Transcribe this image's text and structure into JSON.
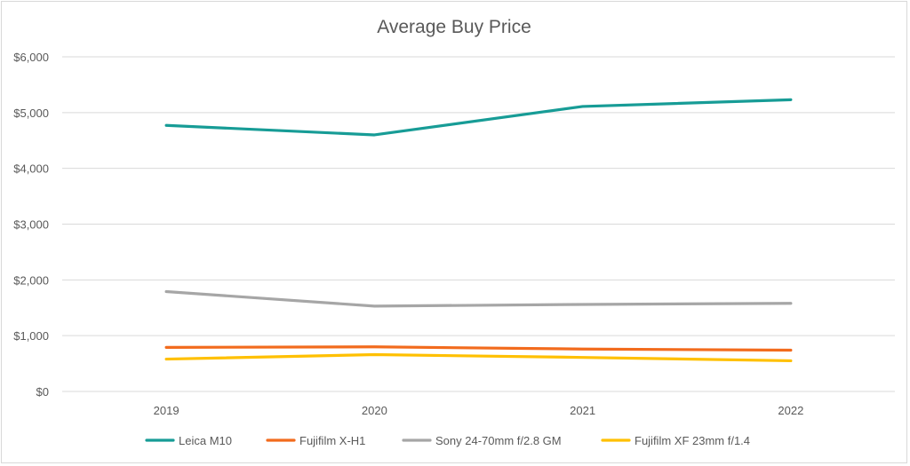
{
  "chart_data": {
    "type": "line",
    "title": "Average Buy Price",
    "xlabel": "",
    "ylabel": "",
    "categories": [
      "2019",
      "2020",
      "2021",
      "2022"
    ],
    "ylim": [
      0,
      6000
    ],
    "yticks": [
      0,
      1000,
      2000,
      3000,
      4000,
      5000,
      6000
    ],
    "ytick_labels": [
      "$0",
      "$1,000",
      "$2,000",
      "$3,000",
      "$4,000",
      "$5,000",
      "$6,000"
    ],
    "grid": true,
    "legend_position": "bottom",
    "series": [
      {
        "name": "Leica M10",
        "color": "#179c96",
        "values": [
          4770,
          4600,
          5110,
          5230
        ]
      },
      {
        "name": "Fujifilm X-H1",
        "color": "#f26b1d",
        "values": [
          790,
          800,
          760,
          740
        ]
      },
      {
        "name": "Sony 24-70mm f/2.8 GM",
        "color": "#a6a6a6",
        "values": [
          1790,
          1530,
          1560,
          1580
        ]
      },
      {
        "name": "Fujifilm XF 23mm f/1.4",
        "color": "#ffc000",
        "values": [
          580,
          660,
          610,
          550
        ]
      }
    ]
  }
}
